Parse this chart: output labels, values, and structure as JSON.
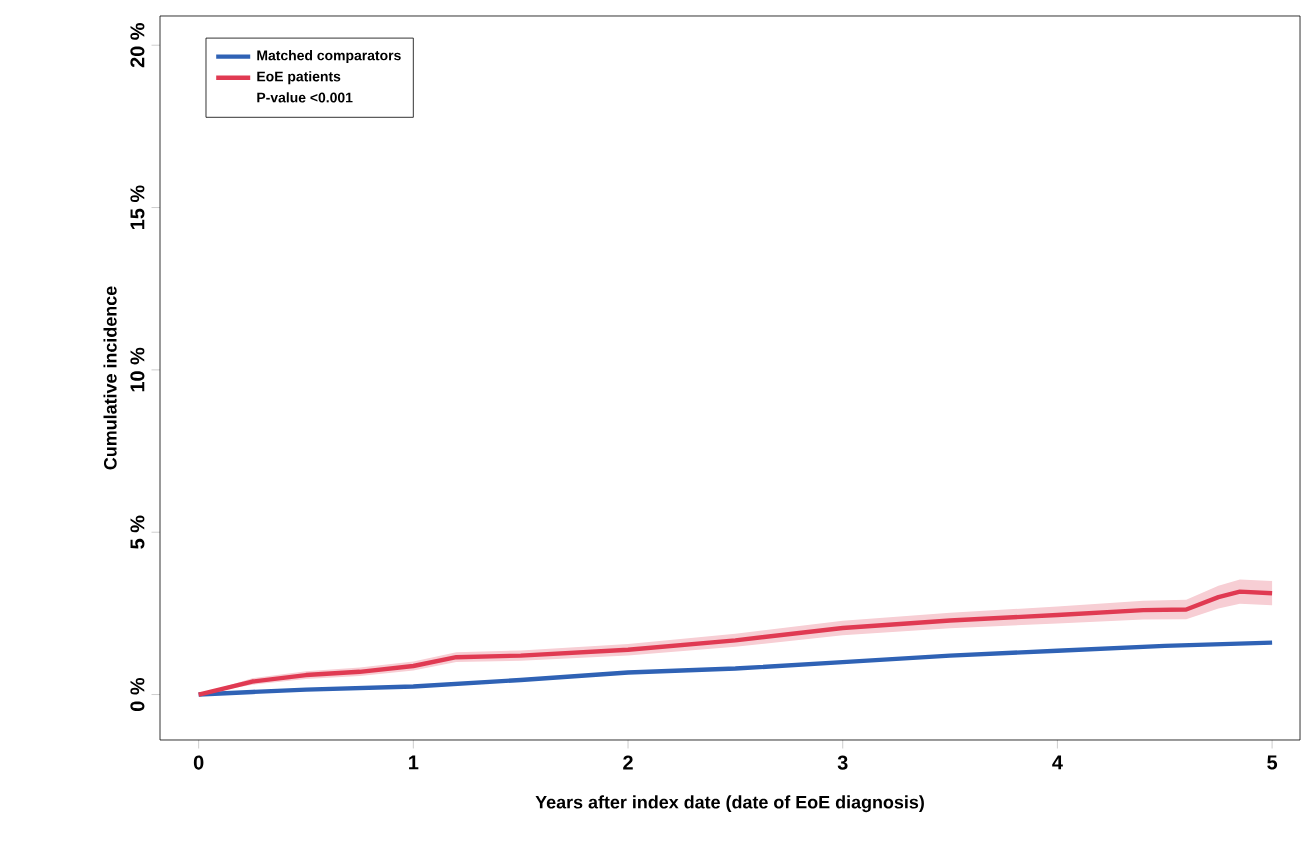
{
  "chart_data": {
    "type": "line",
    "xlabel": "Years after index date (date of EoE diagnosis)",
    "ylabel": "Cumulative incidence",
    "xlim": [
      -0.18,
      5.13
    ],
    "ylim": [
      -1.4,
      20.9
    ],
    "xticks": [
      0,
      1,
      2,
      3,
      4,
      5
    ],
    "yticks": [
      {
        "value": 0,
        "label": "0 %"
      },
      {
        "value": 5,
        "label": "5 %"
      },
      {
        "value": 10,
        "label": "10 %"
      },
      {
        "value": 15,
        "label": "15 %"
      },
      {
        "value": 20,
        "label": "20 %"
      }
    ],
    "legend": "top left",
    "grid": false,
    "marker": "none",
    "line_style": "solid",
    "annotations": [
      "P-value <0.001"
    ],
    "series": [
      {
        "name": "Matched comparators",
        "color": "#2f62b5",
        "x": [
          0,
          0.25,
          0.5,
          1,
          1.5,
          2,
          2.5,
          3,
          3.5,
          4,
          4.5,
          5
        ],
        "values": [
          0,
          0.08,
          0.15,
          0.25,
          0.45,
          0.68,
          0.8,
          1.0,
          1.2,
          1.35,
          1.5,
          1.6
        ]
      },
      {
        "name": "EoE patients",
        "color": "#e03a52",
        "x": [
          0,
          0.25,
          0.5,
          0.75,
          1,
          1.2,
          1.5,
          2,
          2.5,
          3,
          3.5,
          4,
          4.4,
          4.6,
          4.75,
          4.85,
          5
        ],
        "values": [
          0,
          0.4,
          0.6,
          0.7,
          0.88,
          1.15,
          1.2,
          1.38,
          1.67,
          2.05,
          2.28,
          2.45,
          2.6,
          2.62,
          3.0,
          3.17,
          3.12
        ],
        "lower": [
          0,
          0.3,
          0.48,
          0.57,
          0.74,
          1.0,
          1.04,
          1.2,
          1.47,
          1.83,
          2.04,
          2.19,
          2.31,
          2.32,
          2.65,
          2.8,
          2.75
        ],
        "upper": [
          0,
          0.5,
          0.72,
          0.83,
          1.02,
          1.3,
          1.36,
          1.56,
          1.87,
          2.27,
          2.52,
          2.71,
          2.89,
          2.92,
          3.35,
          3.54,
          3.5
        ]
      }
    ]
  }
}
